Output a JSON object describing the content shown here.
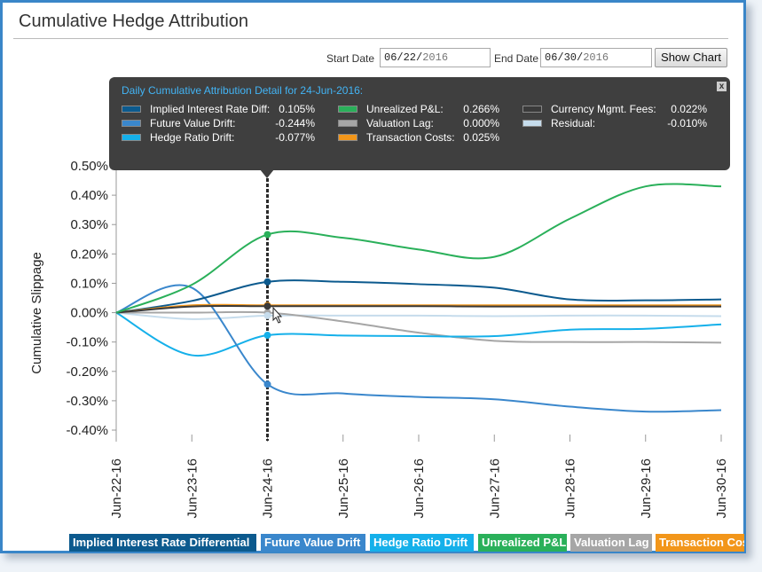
{
  "title": "Cumulative Hedge Attribution",
  "controls": {
    "start_label": "Start Date",
    "start_mmdd": "06/22/",
    "start_year": "2016",
    "end_label": "End Date",
    "end_mmdd": "06/30/",
    "end_year": "2016",
    "show_button": "Show Chart"
  },
  "tooltip": {
    "title": "Daily Cumulative Attribution Detail for 24-Jun-2016:",
    "close": "x",
    "items": [
      {
        "label": "Implied Interest Rate Diff:",
        "value": "0.105%",
        "color": "#0c5a8e"
      },
      {
        "label": "Future Value Drift:",
        "value": "-0.244%",
        "color": "#3a87cc"
      },
      {
        "label": "Hedge Ratio Drift:",
        "value": "-0.077%",
        "color": "#15b0ea"
      },
      {
        "label": "Unrealized P&L:",
        "value": "0.266%",
        "color": "#2ab05a"
      },
      {
        "label": "Valuation Lag:",
        "value": "0.000%",
        "color": "#a6a6a6"
      },
      {
        "label": "Transaction Costs:",
        "value": "0.025%",
        "color": "#f2961a"
      },
      {
        "label": "Currency Mgmt. Fees:",
        "value": "0.022%",
        "color": "#3a3a3a"
      },
      {
        "label": "Residual:",
        "value": "-0.010%",
        "color": "#c6dcec"
      }
    ]
  },
  "chart_data": {
    "type": "line",
    "ylabel": "Cumulative Slippage",
    "xlabel": "",
    "categories": [
      "Jun-22-16",
      "Jun-23-16",
      "Jun-24-16",
      "Jun-25-16",
      "Jun-26-16",
      "Jun-27-16",
      "Jun-28-16",
      "Jun-29-16",
      "Jun-30-16"
    ],
    "yticks": [
      "0.50%",
      "0.40%",
      "0.30%",
      "0.20%",
      "0.10%",
      "0.00%",
      "-0.10%",
      "-0.20%",
      "-0.30%",
      "-0.40%"
    ],
    "ylim": [
      -0.43,
      0.5
    ],
    "highlight_index": 2,
    "series": [
      {
        "name": "Implied Interest Rate Differential",
        "color": "#0c5a8e",
        "values": [
          0.0,
          0.04,
          0.105,
          0.105,
          0.097,
          0.085,
          0.045,
          0.042,
          0.045
        ]
      },
      {
        "name": "Future Value Drift",
        "color": "#3a87cc",
        "values": [
          0.0,
          0.085,
          -0.244,
          -0.275,
          -0.287,
          -0.295,
          -0.32,
          -0.337,
          -0.332
        ]
      },
      {
        "name": "Hedge Ratio Drift",
        "color": "#15b0ea",
        "values": [
          0.0,
          -0.145,
          -0.077,
          -0.078,
          -0.08,
          -0.08,
          -0.058,
          -0.055,
          -0.04
        ]
      },
      {
        "name": "Unrealized P&L",
        "color": "#2ab05a",
        "values": [
          0.0,
          0.095,
          0.266,
          0.255,
          0.215,
          0.19,
          0.32,
          0.43,
          0.43
        ]
      },
      {
        "name": "Valuation Lag",
        "color": "#a6a6a6",
        "values": [
          0.0,
          0.0,
          0.0,
          -0.03,
          -0.068,
          -0.096,
          -0.1,
          -0.1,
          -0.102
        ]
      },
      {
        "name": "Transaction Costs",
        "color": "#f2961a",
        "values": [
          0.0,
          0.025,
          0.025,
          0.025,
          0.025,
          0.025,
          0.025,
          0.025,
          0.025
        ]
      },
      {
        "name": "Currency Mgmt. Fees",
        "color": "#3a3a3a",
        "values": [
          0.0,
          0.021,
          0.022,
          0.022,
          0.022,
          0.021,
          0.021,
          0.021,
          0.021
        ]
      },
      {
        "name": "Residual",
        "color": "#c6dcec",
        "values": [
          0.0,
          -0.022,
          -0.01,
          -0.01,
          -0.01,
          -0.012,
          -0.01,
          -0.01,
          -0.012
        ]
      }
    ],
    "legend": [
      {
        "label": "Implied Interest Rate Differential",
        "color": "#0c5a8e"
      },
      {
        "label": "Future Value Drift",
        "color": "#3a87cc"
      },
      {
        "label": "Hedge Ratio Drift",
        "color": "#15b0ea"
      },
      {
        "label": "Unrealized P&L",
        "color": "#2ab05a"
      },
      {
        "label": "Valuation Lag",
        "color": "#a6a6a6"
      },
      {
        "label": "Transaction Cos",
        "color": "#f2961a"
      }
    ]
  }
}
